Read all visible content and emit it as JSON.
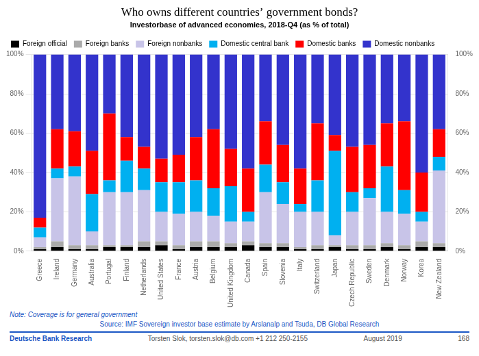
{
  "chart_data": {
    "type": "bar",
    "stacked": true,
    "title": "Who owns different countries’ government bonds?",
    "subtitle": "Investorbase of advanced economies, 2018-Q4 (as % of total)",
    "categories": [
      "Greece",
      "Ireland",
      "Germany",
      "Australia",
      "Portugal",
      "Finland",
      "Netherlands",
      "United States",
      "France",
      "Austria",
      "Belgium",
      "United Kingdom",
      "Canada",
      "Spain",
      "Slovenia",
      "Italy",
      "Switzerland",
      "Japan",
      "Czech Republic",
      "Sweden",
      "Denmark",
      "Norway",
      "Korea",
      "New Zealand"
    ],
    "series": [
      {
        "name": "Foreign official",
        "color": "#000000",
        "values": [
          1,
          2,
          1,
          1,
          2,
          2,
          2,
          3,
          1,
          2,
          2,
          2,
          3,
          2,
          2,
          1,
          1,
          2,
          1,
          1,
          2,
          1,
          2,
          2
        ]
      },
      {
        "name": "Foreign banks",
        "color": "#aaaaaa",
        "values": [
          1,
          3,
          2,
          2,
          1,
          1,
          3,
          2,
          2,
          3,
          3,
          2,
          2,
          2,
          2,
          1,
          2,
          1,
          2,
          2,
          2,
          2,
          3,
          2
        ]
      },
      {
        "name": "Foreign nonbanks",
        "color": "#c8c4e8",
        "values": [
          5,
          32,
          35,
          7,
          27,
          27,
          26,
          15,
          16,
          15,
          13,
          11,
          10,
          26,
          20,
          18,
          17,
          5,
          17,
          24,
          16,
          16,
          10,
          37
        ]
      },
      {
        "name": "Domestic central bank",
        "color": "#00b0f0",
        "values": [
          5,
          5,
          5,
          19,
          6,
          16,
          11,
          15,
          16,
          16,
          14,
          18,
          5,
          14,
          11,
          4,
          16,
          43,
          10,
          5,
          23,
          12,
          5,
          7
        ]
      },
      {
        "name": "Domestic banks",
        "color": "#ff0000",
        "values": [
          5,
          20,
          18,
          22,
          34,
          12,
          11,
          12,
          14,
          22,
          30,
          19,
          22,
          22,
          19,
          18,
          29,
          8,
          23,
          22,
          22,
          35,
          20,
          14
        ]
      },
      {
        "name": "Domestic nonbanks",
        "color": "#3333cc",
        "values": [
          83,
          38,
          39,
          49,
          30,
          42,
          47,
          53,
          51,
          42,
          38,
          48,
          58,
          34,
          46,
          58,
          35,
          41,
          47,
          46,
          35,
          34,
          60,
          38
        ]
      }
    ],
    "ylim": [
      0,
      100
    ],
    "yticks": [
      {
        "value": 0,
        "label": "0%"
      },
      {
        "value": 20,
        "label": "20%"
      },
      {
        "value": 40,
        "label": "40%"
      },
      {
        "value": 60,
        "label": "60%"
      },
      {
        "value": 80,
        "label": "80%"
      },
      {
        "value": 100,
        "label": "100%"
      }
    ],
    "y2lim": [
      0,
      100
    ],
    "y2ticks": [
      {
        "value": 0,
        "label": "0%"
      },
      {
        "value": 20,
        "label": "20%"
      },
      {
        "value": 40,
        "label": "40%"
      },
      {
        "value": 60,
        "label": "60%"
      },
      {
        "value": 80,
        "label": "80%"
      },
      {
        "value": 100,
        "label": "100%"
      }
    ],
    "grid": true,
    "legend": "top",
    "annotations": [
      "Note: Coverage is for general government",
      "Source: IMF Sovereign investor base estimate by Arslanalp and Tsuda, DB Global Research",
      "Deutsche Bank Research",
      "Torsten Slok, torsten.slok@db.com  +1 212 250-2155",
      "August 2019",
      "168"
    ]
  }
}
